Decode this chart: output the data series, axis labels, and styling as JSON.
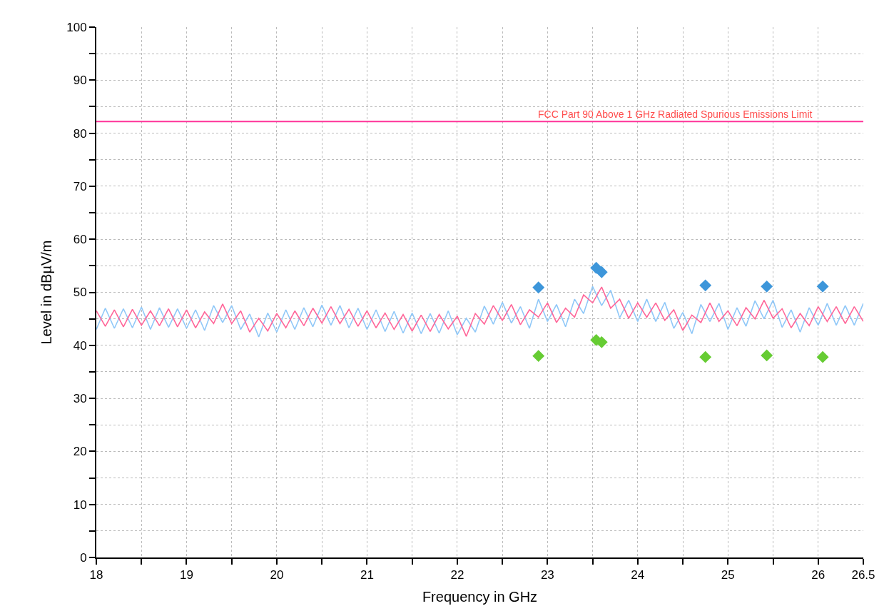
{
  "chart_data": {
    "type": "line",
    "xlabel": "Frequency in GHz",
    "ylabel": "Level in dBµV/m",
    "x": [
      18.0,
      18.1,
      18.2,
      18.3,
      18.4,
      18.5,
      18.6,
      18.7,
      18.8,
      18.9,
      19.0,
      19.1,
      19.2,
      19.3,
      19.4,
      19.5,
      19.6,
      19.7,
      19.8,
      19.9,
      20.0,
      20.1,
      20.2,
      20.3,
      20.4,
      20.5,
      20.6,
      20.7,
      20.8,
      20.9,
      21.0,
      21.1,
      21.2,
      21.3,
      21.4,
      21.5,
      21.6,
      21.7,
      21.8,
      21.9,
      22.0,
      22.1,
      22.2,
      22.3,
      22.4,
      22.5,
      22.6,
      22.7,
      22.8,
      22.9,
      23.0,
      23.1,
      23.2,
      23.3,
      23.4,
      23.5,
      23.6,
      23.7,
      23.8,
      23.9,
      24.0,
      24.1,
      24.2,
      24.3,
      24.4,
      24.5,
      24.6,
      24.7,
      24.8,
      24.9,
      25.0,
      25.1,
      25.2,
      25.3,
      25.4,
      25.5,
      25.6,
      25.7,
      25.8,
      25.9,
      26.0,
      26.1,
      26.2,
      26.3,
      26.4,
      26.5
    ],
    "series": [
      {
        "color": "#90c8f8",
        "values": [
          43.0,
          47.0,
          43.2,
          46.9,
          43.3,
          47.2,
          43.0,
          47.1,
          43.4,
          46.9,
          43.2,
          46.7,
          42.8,
          47.5,
          44.3,
          47.5,
          43.0,
          45.9,
          41.6,
          46.1,
          42.5,
          46.7,
          43.0,
          47.1,
          43.5,
          47.6,
          43.8,
          47.5,
          43.3,
          47.0,
          43.0,
          46.7,
          42.6,
          46.4,
          42.3,
          46.1,
          42.2,
          46.0,
          42.3,
          46.5,
          42.0,
          45.1,
          42.5,
          47.4,
          44.0,
          48.1,
          44.2,
          47.3,
          43.2,
          48.7,
          44.5,
          47.7,
          43.5,
          48.7,
          46.0,
          51.1,
          47.5,
          50.4,
          45.2,
          48.5,
          44.5,
          48.7,
          44.5,
          48.1,
          43.2,
          46.2,
          42.2,
          47.7,
          44.5,
          47.9,
          43.0,
          47.1,
          43.6,
          48.4,
          45.0,
          48.5,
          43.4,
          46.7,
          42.5,
          47.1,
          43.8,
          47.9,
          43.8,
          47.5,
          43.8,
          47.9
        ]
      },
      {
        "color": "#ff6699",
        "values": [
          46.5,
          43.6,
          46.7,
          43.5,
          46.8,
          43.8,
          46.5,
          43.7,
          46.9,
          43.5,
          46.7,
          43.3,
          46.3,
          44.1,
          47.8,
          44.1,
          46.5,
          42.5,
          45.1,
          42.7,
          46.0,
          43.3,
          46.5,
          43.7,
          47.0,
          44.2,
          47.3,
          44.1,
          46.8,
          43.6,
          46.5,
          43.3,
          46.1,
          43.0,
          45.8,
          42.7,
          45.7,
          42.6,
          45.8,
          43.1,
          45.5,
          41.7,
          46.0,
          44.0,
          47.5,
          44.7,
          47.7,
          43.9,
          46.7,
          45.3,
          48.0,
          44.3,
          47.0,
          45.3,
          49.5,
          48.0,
          51.0,
          47.0,
          48.7,
          45.1,
          48.0,
          45.3,
          48.0,
          44.7,
          46.7,
          42.8,
          45.7,
          44.3,
          48.0,
          44.5,
          46.5,
          43.7,
          47.1,
          45.0,
          48.5,
          45.1,
          46.9,
          43.3,
          46.0,
          43.7,
          47.3,
          44.5,
          47.3,
          44.1,
          47.3,
          44.5
        ]
      },
      {
        "type": "scatter",
        "marker": "diamond",
        "color": "#3d96da",
        "x": [
          22.9,
          23.54,
          23.6,
          24.75,
          25.43,
          26.05
        ],
        "values": [
          50.9,
          54.6,
          53.8,
          51.3,
          51.1,
          51.1
        ]
      },
      {
        "type": "scatter",
        "marker": "diamond",
        "color": "#66cc33",
        "x": [
          22.9,
          23.54,
          23.6,
          24.75,
          25.43,
          26.05
        ],
        "values": [
          38.0,
          41.0,
          40.6,
          37.8,
          38.1,
          37.8
        ]
      }
    ],
    "ref_lines": [
      {
        "axis": "y",
        "value": 82.2,
        "label": "FCC Part 90 Above 1 GHz Radiated Spurious Emissions Limit",
        "color": "#ff3399"
      }
    ],
    "xlim": [
      18,
      26.5
    ],
    "xticks": [
      18,
      {
        "value": 18.5,
        "label": null
      },
      19,
      {
        "value": 19.5,
        "label": null
      },
      20,
      {
        "value": 20.5,
        "label": null
      },
      21,
      {
        "value": 21.5,
        "label": null
      },
      22,
      {
        "value": 22.5,
        "label": null
      },
      23,
      {
        "value": 23.5,
        "label": null
      },
      24,
      {
        "value": 24.5,
        "label": null
      },
      25,
      {
        "value": 25.5,
        "label": null
      },
      26,
      26.5
    ],
    "ylim": [
      0,
      100
    ],
    "yticks": [
      0,
      {
        "value": 5,
        "label": null
      },
      10,
      {
        "value": 15,
        "label": null
      },
      20,
      {
        "value": 25,
        "label": null
      },
      30,
      {
        "value": 35,
        "label": null
      },
      40,
      {
        "value": 45,
        "label": null
      },
      50,
      {
        "value": 55,
        "label": null
      },
      60,
      {
        "value": 65,
        "label": null
      },
      70,
      {
        "value": 75,
        "label": null
      },
      80,
      {
        "value": 85,
        "label": null
      },
      90,
      {
        "value": 95,
        "label": null
      },
      100
    ],
    "grid": true,
    "marker": "none",
    "line_style": "solid"
  }
}
